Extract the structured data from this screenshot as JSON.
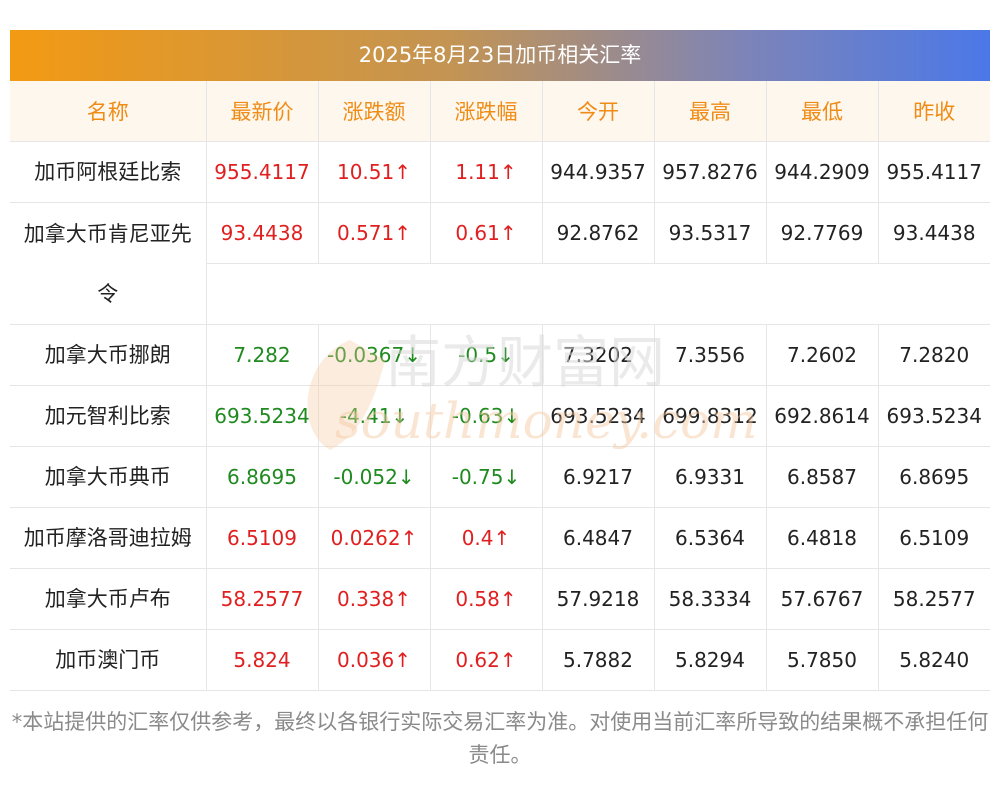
{
  "title": "2025年8月23日加币相关汇率",
  "columns": [
    "名称",
    "最新价",
    "涨跌额",
    "涨跌幅",
    "今开",
    "最高",
    "最低",
    "昨收"
  ],
  "rows": [
    {
      "name": "加币阿根廷比索",
      "latest": "955.4117",
      "change": "10.51↑",
      "pct": "1.11↑",
      "open": "944.9357",
      "high": "957.8276",
      "low": "944.2909",
      "prev": "955.4117",
      "dir": "up"
    },
    {
      "name": "加拿大币肯尼亚先令",
      "latest": "93.4438",
      "change": "0.571↑",
      "pct": "0.61↑",
      "open": "92.8762",
      "high": "93.5317",
      "low": "92.7769",
      "prev": "93.4438",
      "dir": "up"
    },
    {
      "name": "加拿大币挪朗",
      "latest": "7.282",
      "change": "-0.0367↓",
      "pct": "-0.5↓",
      "open": "7.3202",
      "high": "7.3556",
      "low": "7.2602",
      "prev": "7.2820",
      "dir": "down"
    },
    {
      "name": "加元智利比索",
      "latest": "693.5234",
      "change": "-4.41↓",
      "pct": "-0.63↓",
      "open": "693.5234",
      "high": "699.8312",
      "low": "692.8614",
      "prev": "693.5234",
      "dir": "down"
    },
    {
      "name": "加拿大币典币",
      "latest": "6.8695",
      "change": "-0.052↓",
      "pct": "-0.75↓",
      "open": "6.9217",
      "high": "6.9331",
      "low": "6.8587",
      "prev": "6.8695",
      "dir": "down"
    },
    {
      "name": "加币摩洛哥迪拉姆",
      "latest": "6.5109",
      "change": "0.0262↑",
      "pct": "0.4↑",
      "open": "6.4847",
      "high": "6.5364",
      "low": "6.4818",
      "prev": "6.5109",
      "dir": "up"
    },
    {
      "name": "加拿大币卢布",
      "latest": "58.2577",
      "change": "0.338↑",
      "pct": "0.58↑",
      "open": "57.9218",
      "high": "58.3334",
      "low": "57.6767",
      "prev": "58.2577",
      "dir": "up"
    },
    {
      "name": "加币澳门币",
      "latest": "5.824",
      "change": "0.036↑",
      "pct": "0.62↑",
      "open": "5.7882",
      "high": "5.8294",
      "low": "5.7850",
      "prev": "5.8240",
      "dir": "up"
    }
  ],
  "watermark": {
    "cn": "南方财富网",
    "en": "southmoney.com"
  },
  "footer": "*本站提供的汇率仅供参考，最终以各银行实际交易汇率为准。对使用当前汇率所导致的结果概不承担任何责任。",
  "colors": {
    "up": "#e02020",
    "down": "#1f8a1f",
    "header_text": "#f08c16",
    "title_start": "#f39a13",
    "title_end": "#4b78e8"
  }
}
